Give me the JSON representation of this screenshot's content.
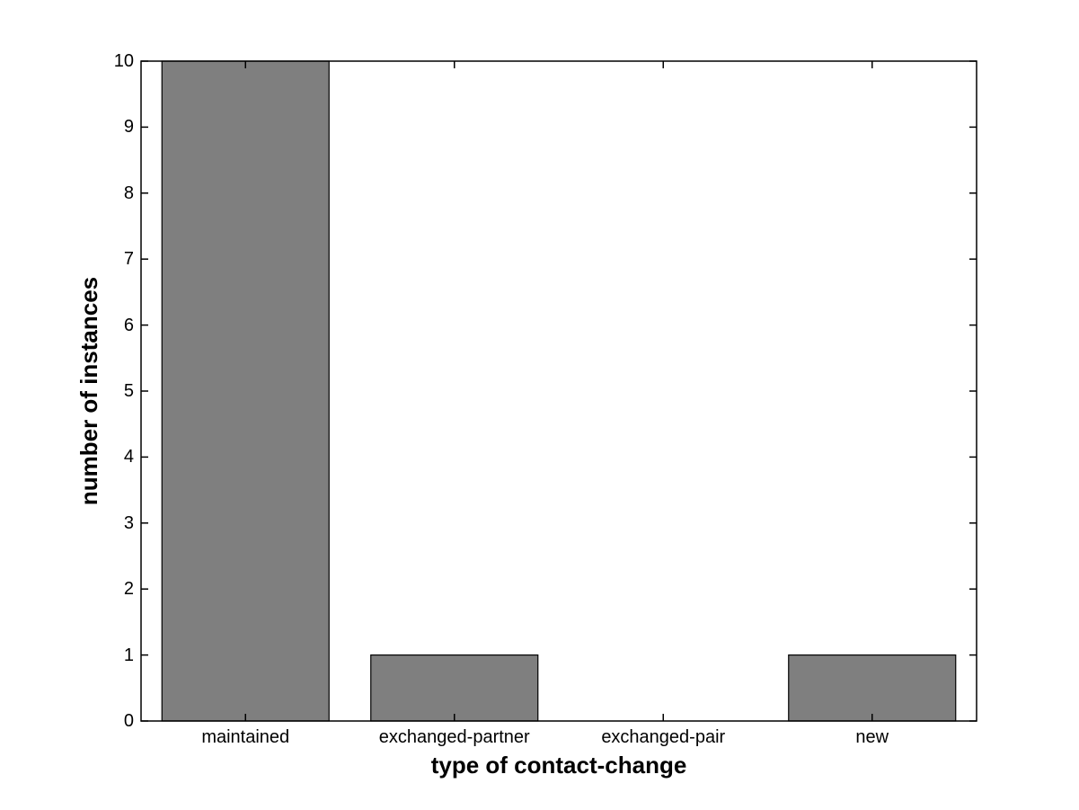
{
  "chart_data": {
    "type": "bar",
    "title": "",
    "xlabel": "type of contact-change",
    "ylabel": "number of instances",
    "categories": [
      "maintained",
      "exchanged-partner",
      "exchanged-pair",
      "new"
    ],
    "values": [
      10,
      1,
      0,
      1
    ],
    "ylim": [
      0,
      10
    ],
    "yticks": [
      0,
      1,
      2,
      3,
      4,
      5,
      6,
      7,
      8,
      9,
      10
    ],
    "bar_width_fraction": 0.8,
    "grid": false,
    "legend_position": "none",
    "tick_direction": "in",
    "box": true,
    "colors": {
      "bar_fill": "#7f7f7f",
      "bar_edge": "#000000",
      "axis": "#000000",
      "background": "#ffffff",
      "text": "#000000"
    }
  }
}
